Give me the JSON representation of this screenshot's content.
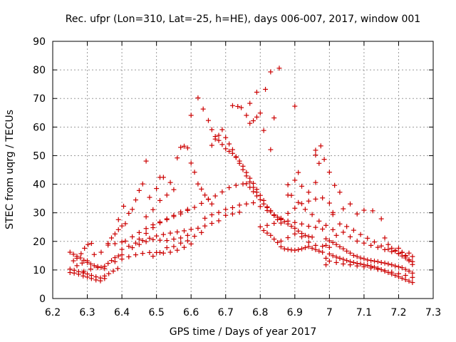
{
  "chart_data": {
    "type": "scatter",
    "title": "Rec. ufpr (Lon=310, Lat=-25, h=HE), days 006-007, 2017, window 001",
    "xlabel": "GPS time / Days of year 2017",
    "ylabel": "STEC from uqrg / TECUs",
    "xlim": [
      6.2,
      7.3
    ],
    "ylim": [
      0,
      90
    ],
    "xticks": [
      "6.2",
      "6.3",
      "6.4",
      "6.5",
      "6.6",
      "6.7",
      "6.8",
      "6.9",
      "7",
      "7.1",
      "7.2",
      "7.3"
    ],
    "yticks": [
      "0",
      "10",
      "20",
      "30",
      "40",
      "50",
      "60",
      "70",
      "80",
      "90"
    ],
    "grid": true,
    "marker": "plus",
    "color": "#cc0000",
    "points": [
      [
        6.25,
        16.2
      ],
      [
        6.26,
        15.5
      ],
      [
        6.27,
        14.8
      ],
      [
        6.28,
        14.2
      ],
      [
        6.29,
        13.4
      ],
      [
        6.3,
        12.6
      ],
      [
        6.31,
        12.1
      ],
      [
        6.32,
        11.5
      ],
      [
        6.33,
        11.2
      ],
      [
        6.34,
        10.9
      ],
      [
        6.35,
        11.3
      ],
      [
        6.36,
        12.3
      ],
      [
        6.37,
        13.3
      ],
      [
        6.38,
        14.3
      ],
      [
        6.39,
        14.9
      ],
      [
        6.4,
        15.3
      ],
      [
        6.25,
        10.3
      ],
      [
        6.262,
        9.9
      ],
      [
        6.275,
        9.4
      ],
      [
        6.288,
        9.0
      ],
      [
        6.3,
        8.6
      ],
      [
        6.312,
        8.1
      ],
      [
        6.325,
        7.6
      ],
      [
        6.338,
        7.2
      ],
      [
        6.35,
        7.9
      ],
      [
        6.362,
        8.7
      ],
      [
        6.375,
        9.6
      ],
      [
        6.388,
        10.5
      ],
      [
        6.25,
        9.1
      ],
      [
        6.262,
        8.9
      ],
      [
        6.275,
        8.5
      ],
      [
        6.288,
        7.9
      ],
      [
        6.3,
        7.5
      ],
      [
        6.312,
        7.0
      ],
      [
        6.325,
        6.5
      ],
      [
        6.338,
        6.2
      ],
      [
        6.35,
        7.0
      ],
      [
        6.26,
        13.2
      ],
      [
        6.27,
        14.1
      ],
      [
        6.282,
        15.7
      ],
      [
        6.292,
        17.6
      ],
      [
        6.302,
        18.9
      ],
      [
        6.312,
        19.3
      ],
      [
        6.27,
        11.5
      ],
      [
        6.285,
        12.4
      ],
      [
        6.3,
        13.2
      ],
      [
        6.32,
        15.4
      ],
      [
        6.34,
        16.2
      ],
      [
        6.36,
        18.7
      ],
      [
        6.38,
        19.2
      ],
      [
        6.4,
        19.8
      ],
      [
        6.29,
        9.5
      ],
      [
        6.31,
        10.3
      ],
      [
        6.33,
        10.8
      ],
      [
        6.35,
        10.5
      ],
      [
        6.36,
        19.3
      ],
      [
        6.37,
        21.2
      ],
      [
        6.38,
        22.6
      ],
      [
        6.39,
        24.1
      ],
      [
        6.4,
        25.4
      ],
      [
        6.41,
        26.2
      ],
      [
        6.39,
        27.6
      ],
      [
        6.405,
        32.3
      ],
      [
        6.42,
        29.8
      ],
      [
        6.43,
        31.2
      ],
      [
        6.44,
        34.5
      ],
      [
        6.45,
        37.8
      ],
      [
        6.46,
        40.1
      ],
      [
        6.47,
        48.1
      ],
      [
        6.38,
        12.9
      ],
      [
        6.4,
        13.8
      ],
      [
        6.42,
        14.6
      ],
      [
        6.44,
        15.3
      ],
      [
        6.46,
        15.8
      ],
      [
        6.48,
        16.1
      ],
      [
        6.5,
        16.1
      ],
      [
        6.52,
        15.9
      ],
      [
        6.54,
        16.2
      ],
      [
        6.56,
        16.9
      ],
      [
        6.58,
        17.9
      ],
      [
        6.6,
        19.1
      ],
      [
        6.4,
        17.2
      ],
      [
        6.42,
        18.3
      ],
      [
        6.44,
        19.4
      ],
      [
        6.46,
        20.3
      ],
      [
        6.48,
        21.1
      ],
      [
        6.5,
        21.9
      ],
      [
        6.52,
        22.4
      ],
      [
        6.54,
        22.9
      ],
      [
        6.56,
        23.3
      ],
      [
        6.58,
        23.7
      ],
      [
        6.6,
        24.2
      ],
      [
        6.62,
        24.6
      ],
      [
        6.64,
        25.4
      ],
      [
        6.66,
        26.3
      ],
      [
        6.68,
        27.2
      ],
      [
        6.7,
        29.1
      ],
      [
        6.72,
        29.6
      ],
      [
        6.74,
        30.2
      ],
      [
        6.41,
        20.1
      ],
      [
        6.43,
        21.6
      ],
      [
        6.45,
        23.1
      ],
      [
        6.47,
        24.5
      ],
      [
        6.49,
        25.8
      ],
      [
        6.51,
        26.8
      ],
      [
        6.53,
        27.6
      ],
      [
        6.55,
        28.7
      ],
      [
        6.57,
        29.6
      ],
      [
        6.59,
        30.8
      ],
      [
        6.61,
        31.9
      ],
      [
        6.63,
        33.3
      ],
      [
        6.65,
        34.8
      ],
      [
        6.67,
        35.9
      ],
      [
        6.69,
        37.3
      ],
      [
        6.71,
        38.8
      ],
      [
        6.73,
        39.6
      ],
      [
        6.75,
        40.1
      ],
      [
        6.43,
        17.8
      ],
      [
        6.45,
        18.9
      ],
      [
        6.47,
        19.9
      ],
      [
        6.49,
        20.6
      ],
      [
        6.51,
        20.4
      ],
      [
        6.53,
        20.3
      ],
      [
        6.55,
        20.8
      ],
      [
        6.57,
        21.2
      ],
      [
        6.59,
        22.1
      ],
      [
        6.45,
        20.8
      ],
      [
        6.47,
        22.8
      ],
      [
        6.49,
        24.8
      ],
      [
        6.51,
        26.5
      ],
      [
        6.53,
        27.9
      ],
      [
        6.55,
        29.1
      ],
      [
        6.57,
        30.3
      ],
      [
        6.59,
        31.2
      ],
      [
        6.47,
        28.6
      ],
      [
        6.49,
        31.1
      ],
      [
        6.51,
        34.3
      ],
      [
        6.53,
        36.2
      ],
      [
        6.55,
        38.1
      ],
      [
        6.48,
        35.4
      ],
      [
        6.5,
        38.5
      ],
      [
        6.51,
        42.4
      ],
      [
        6.52,
        42.4
      ],
      [
        6.54,
        40.6
      ],
      [
        6.49,
        14.8
      ],
      [
        6.51,
        16.1
      ],
      [
        6.53,
        17.8
      ],
      [
        6.55,
        18.2
      ],
      [
        6.57,
        19.4
      ],
      [
        6.59,
        20.2
      ],
      [
        6.61,
        21.8
      ],
      [
        6.63,
        23.1
      ],
      [
        6.56,
        49.2
      ],
      [
        6.57,
        52.9
      ],
      [
        6.58,
        53.3
      ],
      [
        6.59,
        52.7
      ],
      [
        6.6,
        47.4
      ],
      [
        6.61,
        44.2
      ],
      [
        6.62,
        40.1
      ],
      [
        6.63,
        38.3
      ],
      [
        6.64,
        36.2
      ],
      [
        6.65,
        34.7
      ],
      [
        6.66,
        33.1
      ],
      [
        6.6,
        64.1
      ],
      [
        6.62,
        70.2
      ],
      [
        6.635,
        66.3
      ],
      [
        6.65,
        62.3
      ],
      [
        6.66,
        59.1
      ],
      [
        6.67,
        56.7
      ],
      [
        6.68,
        55.3
      ],
      [
        6.69,
        53.9
      ],
      [
        6.7,
        52.4
      ],
      [
        6.71,
        51.5
      ],
      [
        6.72,
        50.8
      ],
      [
        6.73,
        49.4
      ],
      [
        6.74,
        48.1
      ],
      [
        6.75,
        46.3
      ],
      [
        6.76,
        44.1
      ],
      [
        6.77,
        42.1
      ],
      [
        6.78,
        40.3
      ],
      [
        6.79,
        38.2
      ],
      [
        6.8,
        36.1
      ],
      [
        6.81,
        34.3
      ],
      [
        6.82,
        32.1
      ],
      [
        6.83,
        30.8
      ],
      [
        6.84,
        29.3
      ],
      [
        6.85,
        28.5
      ],
      [
        6.86,
        27.6
      ],
      [
        6.87,
        26.9
      ],
      [
        6.88,
        26.1
      ],
      [
        6.89,
        25.3
      ],
      [
        6.9,
        24.6
      ],
      [
        6.91,
        23.6
      ],
      [
        6.92,
        22.8
      ],
      [
        6.93,
        22.1
      ],
      [
        6.94,
        21.7
      ],
      [
        6.95,
        21.5
      ],
      [
        6.66,
        53.6
      ],
      [
        6.67,
        55.8
      ],
      [
        6.68,
        57.1
      ],
      [
        6.69,
        59.1
      ],
      [
        6.7,
        56.3
      ],
      [
        6.71,
        54.1
      ],
      [
        6.72,
        52.1
      ],
      [
        6.73,
        49.6
      ],
      [
        6.74,
        47.3
      ],
      [
        6.75,
        45.1
      ],
      [
        6.76,
        42.9
      ],
      [
        6.77,
        40.8
      ],
      [
        6.78,
        38.9
      ],
      [
        6.79,
        37.2
      ],
      [
        6.72,
        67.5
      ],
      [
        6.735,
        67.2
      ],
      [
        6.745,
        66.8
      ],
      [
        6.76,
        64.1
      ],
      [
        6.77,
        61.3
      ],
      [
        6.78,
        62.2
      ],
      [
        6.79,
        63.5
      ],
      [
        6.8,
        64.9
      ],
      [
        6.81,
        58.8
      ],
      [
        6.77,
        68.3
      ],
      [
        6.79,
        72.2
      ],
      [
        6.815,
        73.2
      ],
      [
        6.83,
        79.3
      ],
      [
        6.855,
        80.6
      ],
      [
        6.84,
        63.2
      ],
      [
        6.83,
        52.1
      ],
      [
        6.9,
        67.3
      ],
      [
        6.64,
        28.1
      ],
      [
        6.66,
        29.3
      ],
      [
        6.68,
        30.1
      ],
      [
        6.7,
        31.2
      ],
      [
        6.72,
        31.8
      ],
      [
        6.74,
        32.7
      ],
      [
        6.76,
        33.1
      ],
      [
        6.78,
        33.5
      ],
      [
        6.8,
        32.2
      ],
      [
        6.82,
        30.8
      ],
      [
        6.84,
        29.1
      ],
      [
        6.86,
        27.8
      ],
      [
        6.88,
        27.1
      ],
      [
        6.9,
        26.6
      ],
      [
        6.92,
        26.1
      ],
      [
        6.94,
        25.3
      ],
      [
        6.96,
        24.9
      ],
      [
        6.98,
        24.3
      ],
      [
        6.76,
        40.2
      ],
      [
        6.77,
        38.9
      ],
      [
        6.78,
        37.4
      ],
      [
        6.79,
        35.9
      ],
      [
        6.8,
        34.6
      ],
      [
        6.81,
        33.1
      ],
      [
        6.82,
        31.8
      ],
      [
        6.83,
        30.3
      ],
      [
        6.84,
        29.1
      ],
      [
        6.85,
        27.6
      ],
      [
        6.86,
        26.4
      ],
      [
        6.8,
        25.1
      ],
      [
        6.81,
        23.8
      ],
      [
        6.82,
        22.9
      ],
      [
        6.83,
        22.1
      ],
      [
        6.84,
        20.8
      ],
      [
        6.85,
        19.6
      ],
      [
        6.86,
        18.1
      ],
      [
        6.87,
        17.4
      ],
      [
        6.88,
        17.2
      ],
      [
        6.89,
        17.0
      ],
      [
        6.9,
        16.9
      ],
      [
        6.91,
        17.1
      ],
      [
        6.92,
        17.4
      ],
      [
        6.93,
        17.8
      ],
      [
        6.94,
        18.2
      ],
      [
        6.95,
        17.6
      ],
      [
        6.96,
        17.1
      ],
      [
        6.97,
        16.6
      ],
      [
        6.82,
        25.6
      ],
      [
        6.84,
        26.3
      ],
      [
        6.86,
        28.1
      ],
      [
        6.88,
        29.8
      ],
      [
        6.9,
        31.6
      ],
      [
        6.92,
        33.2
      ],
      [
        6.94,
        34.1
      ],
      [
        6.96,
        34.8
      ],
      [
        6.98,
        35.2
      ],
      [
        7.0,
        33.4
      ],
      [
        7.01,
        30.1
      ],
      [
        6.88,
        36.2
      ],
      [
        6.9,
        41.4
      ],
      [
        6.91,
        44.1
      ],
      [
        6.92,
        39.3
      ],
      [
        6.94,
        37.2
      ],
      [
        6.96,
        40.6
      ],
      [
        6.97,
        47.3
      ],
      [
        6.96,
        50.2
      ],
      [
        6.96,
        51.9
      ],
      [
        6.975,
        53.4
      ],
      [
        6.985,
        48.7
      ],
      [
        7.0,
        44.2
      ],
      [
        6.88,
        39.8
      ],
      [
        6.89,
        36.1
      ],
      [
        6.91,
        33.6
      ],
      [
        6.93,
        31.2
      ],
      [
        6.95,
        29.4
      ],
      [
        6.97,
        27.1
      ],
      [
        6.99,
        25.6
      ],
      [
        7.01,
        24.1
      ],
      [
        6.86,
        20.1
      ],
      [
        6.88,
        21.3
      ],
      [
        6.9,
        22.6
      ],
      [
        6.92,
        21.6
      ],
      [
        6.94,
        19.7
      ],
      [
        6.96,
        18.6
      ],
      [
        6.98,
        18.3
      ],
      [
        7.0,
        17.9
      ],
      [
        7.015,
        39.6
      ],
      [
        7.03,
        37.2
      ],
      [
        7.01,
        29.4
      ],
      [
        7.04,
        31.4
      ],
      [
        7.06,
        33.1
      ],
      [
        7.08,
        29.6
      ],
      [
        7.1,
        30.9
      ],
      [
        7.125,
        30.7
      ],
      [
        7.15,
        27.9
      ],
      [
        7.0,
        20.2
      ],
      [
        7.01,
        19.6
      ],
      [
        7.02,
        18.9
      ],
      [
        7.03,
        18.1
      ],
      [
        7.04,
        17.4
      ],
      [
        7.05,
        16.6
      ],
      [
        7.06,
        15.9
      ],
      [
        7.07,
        15.1
      ],
      [
        7.08,
        14.7
      ],
      [
        7.09,
        14.2
      ],
      [
        7.1,
        13.9
      ],
      [
        7.11,
        13.5
      ],
      [
        7.12,
        13.3
      ],
      [
        7.13,
        13.1
      ],
      [
        7.14,
        12.9
      ],
      [
        7.15,
        12.6
      ],
      [
        7.16,
        12.4
      ],
      [
        7.17,
        12.1
      ],
      [
        7.18,
        11.8
      ],
      [
        7.19,
        11.4
      ],
      [
        7.2,
        11.1
      ],
      [
        7.21,
        10.8
      ],
      [
        7.22,
        10.2
      ],
      [
        7.23,
        9.6
      ],
      [
        7.24,
        8.9
      ],
      [
        7.0,
        15.6
      ],
      [
        7.01,
        15.0
      ],
      [
        7.02,
        14.5
      ],
      [
        7.03,
        14.1
      ],
      [
        7.04,
        13.7
      ],
      [
        7.05,
        13.3
      ],
      [
        7.06,
        12.9
      ],
      [
        7.07,
        12.6
      ],
      [
        7.08,
        12.3
      ],
      [
        7.09,
        12.1
      ],
      [
        7.1,
        11.8
      ],
      [
        7.11,
        11.6
      ],
      [
        7.12,
        11.3
      ],
      [
        7.13,
        11.0
      ],
      [
        7.14,
        10.6
      ],
      [
        7.15,
        10.1
      ],
      [
        7.16,
        9.6
      ],
      [
        7.17,
        9.1
      ],
      [
        7.18,
        8.6
      ],
      [
        7.19,
        8.1
      ],
      [
        7.2,
        7.6
      ],
      [
        7.21,
        7.1
      ],
      [
        7.22,
        6.6
      ],
      [
        7.23,
        6.1
      ],
      [
        7.24,
        5.6
      ],
      [
        7.0,
        13.1
      ],
      [
        7.02,
        12.6
      ],
      [
        7.04,
        12.1
      ],
      [
        7.06,
        11.8
      ],
      [
        7.08,
        11.4
      ],
      [
        7.1,
        11.1
      ],
      [
        7.12,
        10.7
      ],
      [
        7.14,
        10.2
      ],
      [
        7.16,
        9.7
      ],
      [
        7.18,
        9.2
      ],
      [
        7.2,
        8.7
      ],
      [
        7.22,
        8.1
      ],
      [
        7.24,
        7.4
      ],
      [
        7.02,
        22.1
      ],
      [
        7.04,
        23.2
      ],
      [
        7.06,
        21.6
      ],
      [
        7.08,
        20.1
      ],
      [
        7.1,
        19.4
      ],
      [
        7.12,
        18.6
      ],
      [
        7.14,
        17.9
      ],
      [
        7.16,
        17.1
      ],
      [
        7.18,
        16.4
      ],
      [
        7.2,
        15.8
      ],
      [
        7.22,
        15.1
      ],
      [
        7.24,
        14.7
      ],
      [
        7.03,
        26.1
      ],
      [
        7.05,
        25.2
      ],
      [
        7.07,
        23.9
      ],
      [
        7.09,
        22.4
      ],
      [
        7.11,
        21.1
      ],
      [
        7.13,
        19.8
      ],
      [
        7.15,
        18.4
      ],
      [
        7.17,
        17.2
      ],
      [
        7.19,
        16.6
      ],
      [
        7.21,
        16.1
      ],
      [
        7.23,
        15.9
      ],
      [
        7.16,
        21.2
      ],
      [
        7.17,
        18.9
      ],
      [
        7.18,
        17.6
      ],
      [
        7.19,
        16.9
      ],
      [
        7.2,
        15.7
      ],
      [
        7.21,
        14.9
      ],
      [
        7.22,
        14.2
      ],
      [
        7.23,
        13.6
      ],
      [
        7.24,
        12.9
      ],
      [
        7.2,
        17.6
      ],
      [
        7.21,
        16.2
      ],
      [
        7.22,
        14.8
      ],
      [
        7.23,
        13.2
      ],
      [
        7.24,
        11.9
      ],
      [
        6.99,
        20.9
      ],
      [
        6.99,
        18.6
      ],
      [
        6.98,
        16.2
      ],
      [
        6.99,
        14.1
      ],
      [
        6.99,
        11.8
      ]
    ]
  }
}
